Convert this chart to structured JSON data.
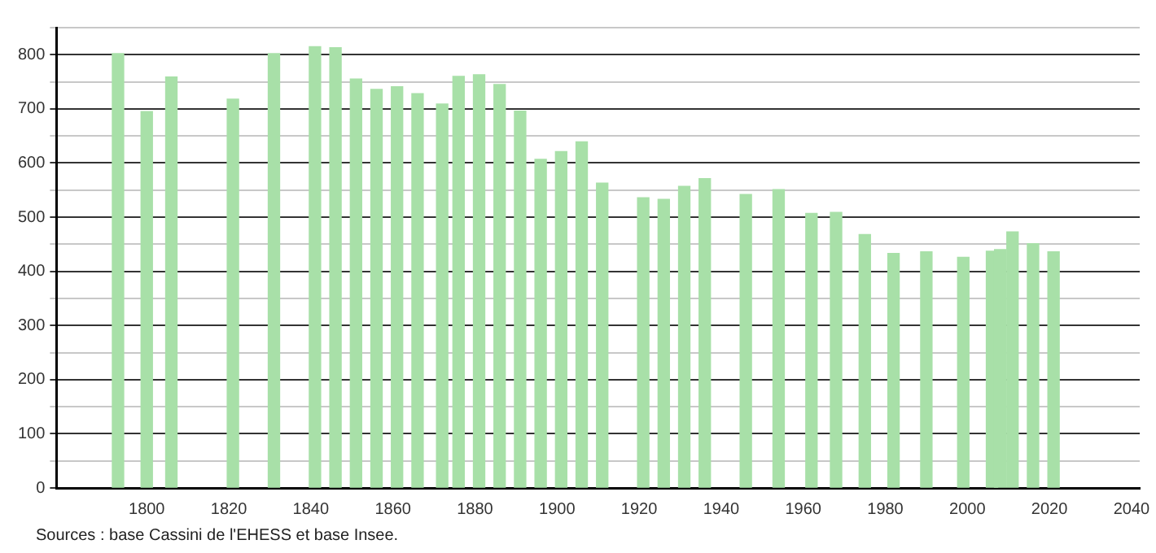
{
  "chart_data": {
    "type": "bar",
    "x": [
      1793,
      1800,
      1806,
      1821,
      1831,
      1841,
      1846,
      1851,
      1856,
      1861,
      1866,
      1872,
      1876,
      1881,
      1886,
      1891,
      1896,
      1901,
      1906,
      1911,
      1921,
      1926,
      1931,
      1936,
      1946,
      1954,
      1962,
      1968,
      1975,
      1982,
      1990,
      1999,
      2006,
      2008,
      2011,
      2016,
      2021
    ],
    "values": [
      802,
      695,
      759,
      718,
      802,
      815,
      813,
      755,
      736,
      741,
      728,
      709,
      760,
      763,
      745,
      696,
      607,
      621,
      639,
      563,
      536,
      533,
      557,
      571,
      542,
      551,
      507,
      509,
      468,
      433,
      436,
      426,
      437,
      440,
      473,
      451,
      436
    ],
    "color": "#a8e0a8",
    "xlim": [
      1778,
      2042
    ],
    "xticks": [
      1800,
      1820,
      1840,
      1860,
      1880,
      1900,
      1920,
      1940,
      1960,
      1980,
      2000,
      2020,
      2040
    ],
    "ylim": [
      0,
      850
    ],
    "yticks": [
      0,
      {
        "value": 50,
        "label": null
      },
      100,
      {
        "value": 150,
        "label": null
      },
      200,
      {
        "value": 250,
        "label": null
      },
      300,
      {
        "value": 350,
        "label": null
      },
      400,
      {
        "value": 450,
        "label": null
      },
      500,
      {
        "value": 550,
        "label": null
      },
      600,
      {
        "value": 650,
        "label": null
      },
      700,
      {
        "value": 750,
        "label": null
      },
      800,
      {
        "value": 850,
        "label": null
      }
    ],
    "grid": "y",
    "legend": false,
    "annotations": [
      "Sources : base Cassini de l'EHESS et base Insee."
    ]
  }
}
